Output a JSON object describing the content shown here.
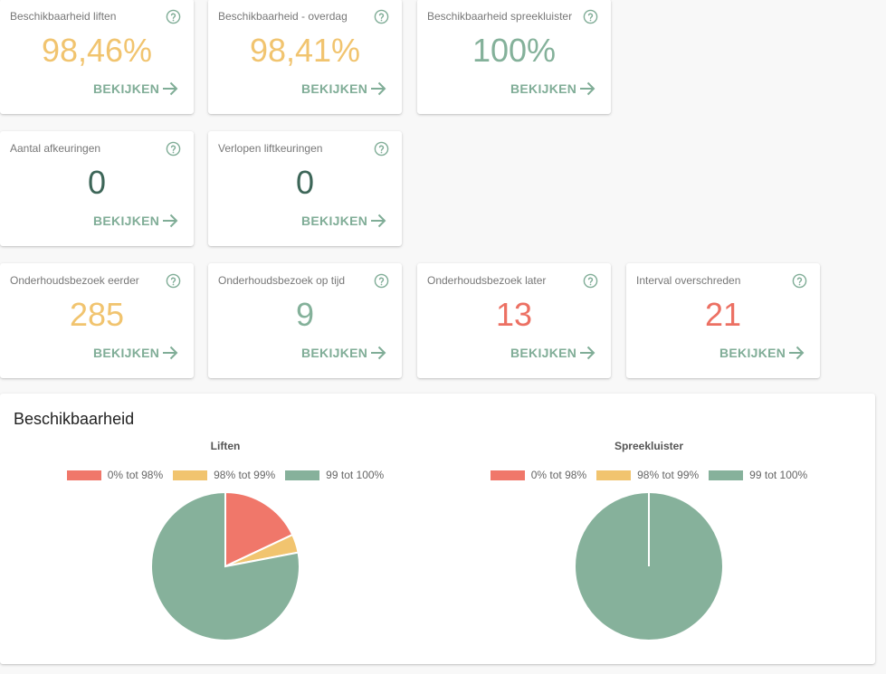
{
  "cards": [
    {
      "title": "Beschikbaarheid liften",
      "value": "98,46%",
      "color": "#f1c46f",
      "link": "BEKIJKEN"
    },
    {
      "title": "Beschikbaarheid - overdag",
      "value": "98,41%",
      "color": "#f1c46f",
      "link": "BEKIJKEN"
    },
    {
      "title": "Beschikbaarheid spreekluister",
      "value": "100%",
      "color": "#84b19a",
      "link": "BEKIJKEN"
    },
    {
      "title": "Aantal afkeuringen",
      "value": "0",
      "color": "#3d6658",
      "link": "BEKIJKEN"
    },
    {
      "title": "Verlopen liftkeuringen",
      "value": "0",
      "color": "#3d6658",
      "link": "BEKIJKEN"
    },
    {
      "title": "Onderhoudsbezoek eerder",
      "value": "285",
      "color": "#f1c46f",
      "link": "BEKIJKEN"
    },
    {
      "title": "Onderhoudsbezoek op tijd",
      "value": "9",
      "color": "#84b19a",
      "link": "BEKIJKEN"
    },
    {
      "title": "Onderhoudsbezoek later",
      "value": "13",
      "color": "#ec7063",
      "link": "BEKIJKEN"
    },
    {
      "title": "Interval overschreden",
      "value": "21",
      "color": "#ec7063",
      "link": "BEKIJKEN"
    }
  ],
  "panel": {
    "title": "Beschikbaarheid"
  },
  "chart_data": [
    {
      "type": "pie",
      "title": "Liften",
      "labels": [
        "0% tot 98%",
        "98% tot 99%",
        "99 tot 100%"
      ],
      "values": [
        18,
        4,
        78
      ],
      "colors": [
        "#f0776a",
        "#f1c46f",
        "#86b19b"
      ],
      "legend": "top"
    },
    {
      "type": "pie",
      "title": "Spreekluister",
      "labels": [
        "0% tot 98%",
        "98% tot 99%",
        "99 tot 100%"
      ],
      "values": [
        0,
        0,
        100
      ],
      "colors": [
        "#f0776a",
        "#f1c46f",
        "#86b19b"
      ],
      "legend": "top"
    }
  ],
  "icons": {
    "help": "help-circle-icon",
    "arrow": "arrow-right-icon"
  }
}
